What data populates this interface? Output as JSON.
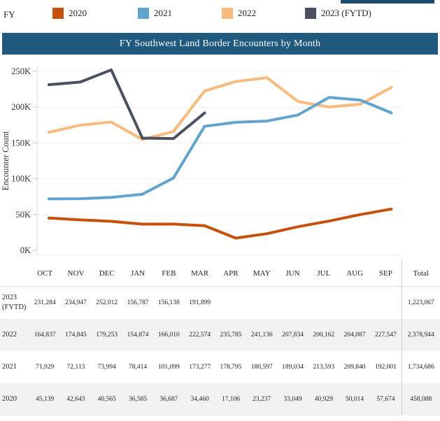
{
  "legend": {
    "label": "FY",
    "items": [
      {
        "label": "2020",
        "color": "#c6510d"
      },
      {
        "label": "2021",
        "color": "#61a4ce"
      },
      {
        "label": "2022",
        "color": "#f9bb7d"
      },
      {
        "label": "2023 (FYTD)",
        "color": "#49515f"
      }
    ]
  },
  "title_bar": {
    "title": "FY Southwest Land Border Encounters by Month"
  },
  "chart_data": {
    "type": "line",
    "title": "FY Southwest Land Border Encounters by Month",
    "xlabel": "",
    "ylabel": "Encounter Count",
    "ylim": [
      0,
      250000
    ],
    "ytick_step": 50000,
    "ytick_labels": [
      "0K",
      "50K",
      "100K",
      "150K",
      "200K",
      "250K"
    ],
    "grid": true,
    "legend_position": "top",
    "categories": [
      "OCT",
      "NOV",
      "DEC",
      "JAN",
      "FEB",
      "MAR",
      "APR",
      "MAY",
      "JUN",
      "JUL",
      "AUG",
      "SEP"
    ],
    "series": [
      {
        "name": "2020",
        "color": "#c6510d",
        "values": [
          45139,
          42643,
          40565,
          36585,
          36687,
          34460,
          17106,
          23237,
          33049,
          40929,
          50014,
          57674
        ]
      },
      {
        "name": "2021",
        "color": "#61a4ce",
        "values": [
          71929,
          72113,
          73994,
          78414,
          101099,
          173277,
          178795,
          180597,
          189034,
          213593,
          209840,
          192001
        ]
      },
      {
        "name": "2022",
        "color": "#f9bb7d",
        "values": [
          164837,
          174845,
          179253,
          154874,
          166010,
          222574,
          235785,
          241136,
          207834,
          200162,
          204087,
          227547
        ]
      },
      {
        "name": "2023 (FYTD)",
        "color": "#49515f",
        "values": [
          231284,
          234947,
          252012,
          156787,
          156138,
          191899,
          null,
          null,
          null,
          null,
          null,
          null
        ]
      }
    ]
  },
  "table": {
    "month_headers": [
      "OCT",
      "NOV",
      "DEC",
      "JAN",
      "FEB",
      "MAR",
      "APR",
      "MAY",
      "JUN",
      "JUL",
      "AUG",
      "SEP"
    ],
    "total_header": "Total",
    "rows": [
      {
        "label": "2023 (FYTD)",
        "striped": false,
        "values": [
          "231,284",
          "234,947",
          "252,012",
          "156,787",
          "156,138",
          "191,899",
          "",
          "",
          "",
          "",
          "",
          ""
        ],
        "total": "1,223,067"
      },
      {
        "label": "2022",
        "striped": true,
        "values": [
          "164,837",
          "174,845",
          "179,253",
          "154,874",
          "166,010",
          "222,574",
          "235,785",
          "241,136",
          "207,834",
          "200,162",
          "204,087",
          "227,547"
        ],
        "total": "2,378,944"
      },
      {
        "label": "2021",
        "striped": false,
        "values": [
          "71,929",
          "72,113",
          "73,994",
          "78,414",
          "101,099",
          "173,277",
          "178,795",
          "180,597",
          "189,034",
          "213,593",
          "209,840",
          "192,001"
        ],
        "total": "1,734,686"
      },
      {
        "label": "2020",
        "striped": true,
        "values": [
          "45,139",
          "42,643",
          "40,565",
          "36,585",
          "36,687",
          "34,460",
          "17,106",
          "23,237",
          "33,049",
          "40,929",
          "50,014",
          "57,674"
        ],
        "total": "458,088"
      }
    ]
  }
}
